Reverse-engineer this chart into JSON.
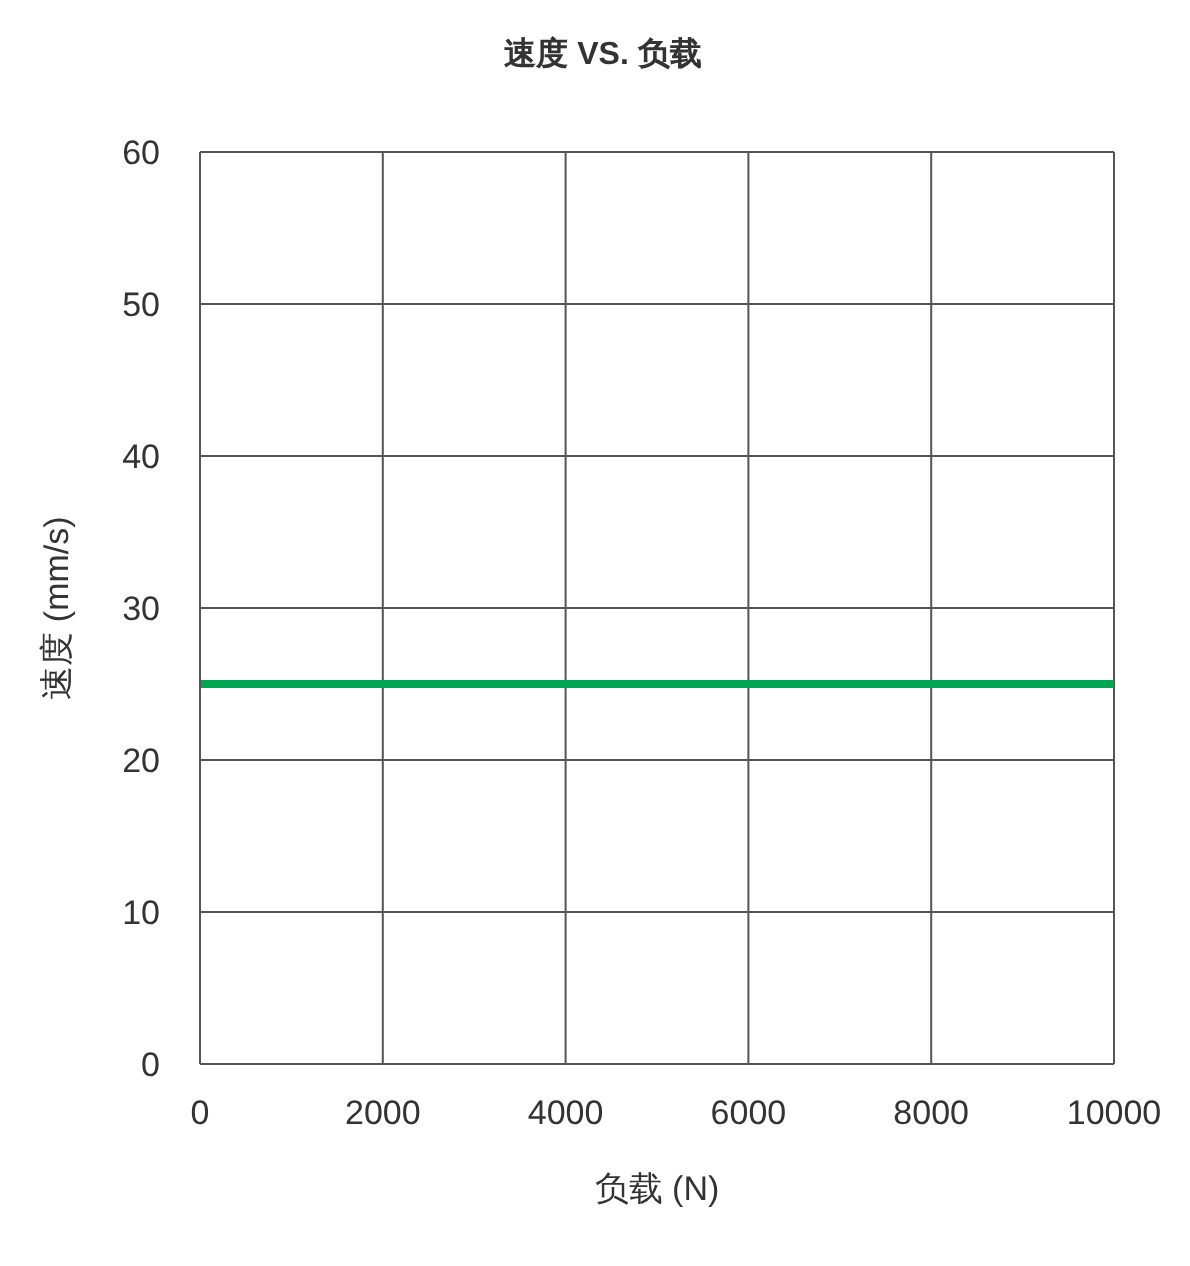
{
  "chart_data": {
    "type": "line",
    "title": "速度 VS. 负载",
    "xlabel": "负载 (N)",
    "ylabel": "速度 (mm/s)",
    "x": [
      0,
      10000
    ],
    "series": [
      {
        "color": "#00a651",
        "values": [
          25,
          25
        ]
      }
    ],
    "xlim": [
      0,
      10000
    ],
    "xticks": [
      0,
      2000,
      4000,
      6000,
      8000,
      10000
    ],
    "ylim": [
      0,
      60
    ],
    "yticks": [
      0,
      10,
      20,
      30,
      40,
      50,
      60
    ],
    "grid": true,
    "marker": "none",
    "line_style": "solid"
  }
}
